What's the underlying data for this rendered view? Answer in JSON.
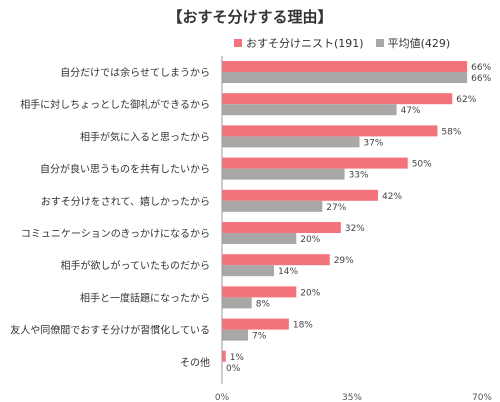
{
  "chart_data": {
    "type": "bar",
    "orientation": "horizontal",
    "title": "【おすそ分けする理由】",
    "categories": [
      "自分だけでは余らせてしまうから",
      "相手に対しちょっとした御礼ができるから",
      "相手が気に入ると思ったから",
      "自分が良い思うものを共有したいから",
      "おすそ分けをされて、嬉しかったから",
      "コミュニケーションのきっかけになるから",
      "相手が欲しがっていたものだから",
      "相手と一度話題になったから",
      "友人や同僚間でおすそ分けが習慣化している",
      "その他"
    ],
    "series": [
      {
        "name": "おすそ分けニスト(191)",
        "color": "#f2737b",
        "values": [
          66,
          62,
          58,
          50,
          42,
          32,
          29,
          20,
          18,
          1
        ],
        "value_labels": [
          "66%",
          "62%",
          "58%",
          "50%",
          "42%",
          "32%",
          "29%",
          "20%",
          "18%",
          "1%"
        ]
      },
      {
        "name": "平均値(429)",
        "color": "#aaa7a7",
        "values": [
          66,
          47,
          37,
          33,
          27,
          20,
          14,
          8,
          7,
          0
        ],
        "value_labels": [
          "66%",
          "47%",
          "37%",
          "33%",
          "27%",
          "20%",
          "14%",
          "8%",
          "7%",
          "0%"
        ]
      }
    ],
    "xlim": [
      0,
      70
    ],
    "x_ticks": [
      "0%",
      "35%",
      "70%"
    ],
    "legend": "top-right",
    "grid": false
  }
}
